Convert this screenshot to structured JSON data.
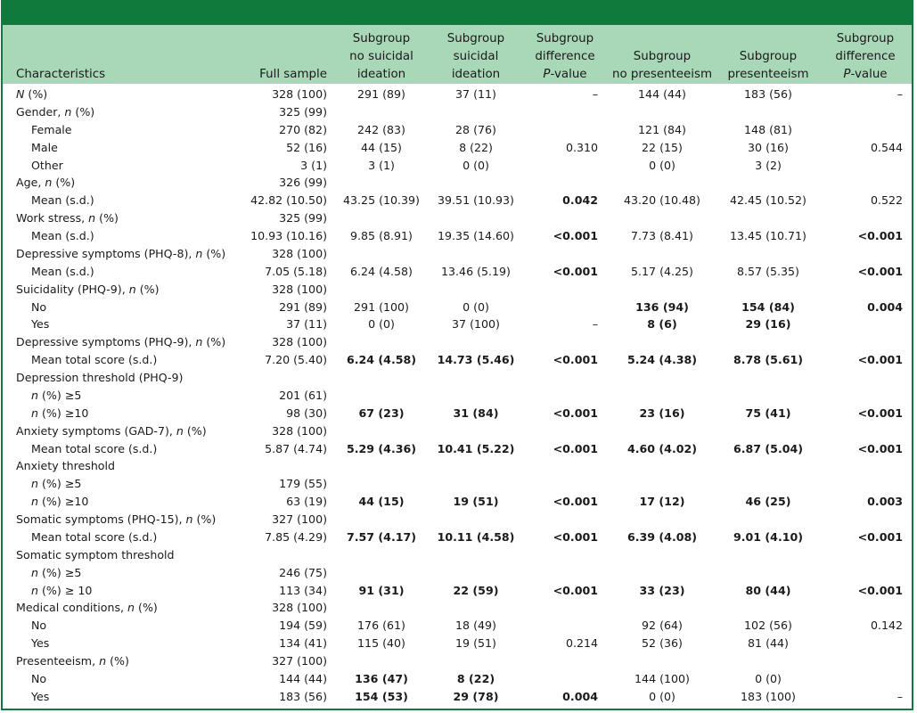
{
  "table": {
    "headers": [
      "Characteristics",
      "Full sample",
      "Subgroup\nno suicidal\nideation",
      "Subgroup\nsuicidal\nideation",
      "Subgroup\ndifference\nP-value",
      "Subgroup\nno presenteeism",
      "Subgroup\npresenteeism",
      "Subgroup\ndifference\nP-value"
    ],
    "rows": [
      {
        "label": "N (%)",
        "indent": false,
        "cells": [
          "328 (100)",
          "291 (89)",
          "37 (11)",
          "–",
          "144 (44)",
          "183 (56)",
          "–"
        ],
        "bold": []
      },
      {
        "label": "Gender, n (%)",
        "indent": false,
        "cells": [
          "325 (99)",
          "",
          "",
          "",
          "",
          "",
          ""
        ],
        "bold": []
      },
      {
        "label": "Female",
        "indent": true,
        "cells": [
          "270 (82)",
          "242 (83)",
          "28 (76)",
          "",
          "121 (84)",
          "148 (81)",
          ""
        ],
        "bold": []
      },
      {
        "label": "Male",
        "indent": true,
        "cells": [
          "52 (16)",
          "44 (15)",
          "8 (22)",
          "0.310",
          "22 (15)",
          "30 (16)",
          "0.544"
        ],
        "bold": []
      },
      {
        "label": "Other",
        "indent": true,
        "cells": [
          "3 (1)",
          "3 (1)",
          "0 (0)",
          "",
          "0 (0)",
          "3 (2)",
          ""
        ],
        "bold": []
      },
      {
        "label": "Age, n (%)",
        "indent": false,
        "cells": [
          "326 (99)",
          "",
          "",
          "",
          "",
          "",
          ""
        ],
        "bold": []
      },
      {
        "label": "Mean (s.d.)",
        "indent": true,
        "cells": [
          "42.82 (10.50)",
          "43.25 (10.39)",
          "39.51 (10.93)",
          "0.042",
          "43.20 (10.48)",
          "42.45 (10.52)",
          "0.522"
        ],
        "bold": [
          3
        ]
      },
      {
        "label": "Work stress, n (%)",
        "indent": false,
        "cells": [
          "325 (99)",
          "",
          "",
          "",
          "",
          "",
          ""
        ],
        "bold": []
      },
      {
        "label": "Mean (s.d.)",
        "indent": true,
        "cells": [
          "10.93 (10.16)",
          "9.85 (8.91)",
          "19.35 (14.60)",
          "<0.001",
          "7.73 (8.41)",
          "13.45 (10.71)",
          "<0.001"
        ],
        "bold": [
          3,
          6
        ]
      },
      {
        "label": "Depressive symptoms (PHQ-8), n (%)",
        "indent": false,
        "cells": [
          "328 (100)",
          "",
          "",
          "",
          "",
          "",
          ""
        ],
        "bold": []
      },
      {
        "label": "Mean (s.d.)",
        "indent": true,
        "cells": [
          "7.05 (5.18)",
          "6.24 (4.58)",
          "13.46 (5.19)",
          "<0.001",
          "5.17 (4.25)",
          "8.57 (5.35)",
          "<0.001"
        ],
        "bold": [
          3,
          6
        ]
      },
      {
        "label": "Suicidality (PHQ-9), n (%)",
        "indent": false,
        "cells": [
          "328 (100)",
          "",
          "",
          "",
          "",
          "",
          ""
        ],
        "bold": []
      },
      {
        "label": "No",
        "indent": true,
        "cells": [
          "291 (89)",
          "291 (100)",
          "0 (0)",
          "",
          "136 (94)",
          "154 (84)",
          "0.004"
        ],
        "bold": [
          4,
          5,
          6
        ]
      },
      {
        "label": "Yes",
        "indent": true,
        "cells": [
          "37 (11)",
          "0 (0)",
          "37 (100)",
          "–",
          "8 (6)",
          "29 (16)",
          ""
        ],
        "bold": [
          4,
          5
        ]
      },
      {
        "label": "Depressive symptoms (PHQ-9), n (%)",
        "indent": false,
        "cells": [
          "328 (100)",
          "",
          "",
          "",
          "",
          "",
          ""
        ],
        "bold": []
      },
      {
        "label": "Mean total score (s.d.)",
        "indent": true,
        "cells": [
          "7.20 (5.40)",
          "6.24 (4.58)",
          "14.73 (5.46)",
          "<0.001",
          "5.24 (4.38)",
          "8.78 (5.61)",
          "<0.001"
        ],
        "bold": [
          1,
          2,
          3,
          4,
          5,
          6
        ]
      },
      {
        "label": "Depression threshold (PHQ-9)",
        "indent": false,
        "cells": [
          "",
          "",
          "",
          "",
          "",
          "",
          ""
        ],
        "bold": []
      },
      {
        "label": "n (%) ≥5",
        "indent": true,
        "cells": [
          "201 (61)",
          "",
          "",
          "",
          "",
          "",
          ""
        ],
        "bold": []
      },
      {
        "label": "n (%) ≥10",
        "indent": true,
        "cells": [
          "98 (30)",
          "67 (23)",
          "31 (84)",
          "<0.001",
          "23 (16)",
          "75 (41)",
          "<0.001"
        ],
        "bold": [
          1,
          2,
          3,
          4,
          5,
          6
        ]
      },
      {
        "label": "Anxiety symptoms (GAD-7), n (%)",
        "indent": false,
        "cells": [
          "328 (100)",
          "",
          "",
          "",
          "",
          "",
          ""
        ],
        "bold": []
      },
      {
        "label": "Mean total score (s.d.)",
        "indent": true,
        "cells": [
          "5.87 (4.74)",
          "5.29 (4.36)",
          "10.41 (5.22)",
          "<0.001",
          "4.60 (4.02)",
          "6.87 (5.04)",
          "<0.001"
        ],
        "bold": [
          1,
          2,
          3,
          4,
          5,
          6
        ]
      },
      {
        "label": "Anxiety threshold",
        "indent": false,
        "cells": [
          "",
          "",
          "",
          "",
          "",
          "",
          ""
        ],
        "bold": []
      },
      {
        "label": "n (%) ≥5",
        "indent": true,
        "cells": [
          "179 (55)",
          "",
          "",
          "",
          "",
          "",
          ""
        ],
        "bold": []
      },
      {
        "label": "n (%) ≥10",
        "indent": true,
        "cells": [
          "63 (19)",
          "44 (15)",
          "19 (51)",
          "<0.001",
          "17 (12)",
          "46 (25)",
          "0.003"
        ],
        "bold": [
          1,
          2,
          3,
          4,
          5,
          6
        ]
      },
      {
        "label": "Somatic symptoms (PHQ-15), n (%)",
        "indent": false,
        "cells": [
          "327 (100)",
          "",
          "",
          "",
          "",
          "",
          ""
        ],
        "bold": []
      },
      {
        "label": "Mean total score (s.d.)",
        "indent": true,
        "cells": [
          "7.85 (4.29)",
          "7.57 (4.17)",
          "10.11 (4.58)",
          "<0.001",
          "6.39 (4.08)",
          "9.01 (4.10)",
          "<0.001"
        ],
        "bold": [
          1,
          2,
          3,
          4,
          5,
          6
        ]
      },
      {
        "label": "Somatic symptom threshold",
        "indent": false,
        "cells": [
          "",
          "",
          "",
          "",
          "",
          "",
          ""
        ],
        "bold": []
      },
      {
        "label": "n (%) ≥5",
        "indent": true,
        "cells": [
          "246 (75)",
          "",
          "",
          "",
          "",
          "",
          ""
        ],
        "bold": []
      },
      {
        "label": "n (%) ≥ 10",
        "indent": true,
        "cells": [
          "113 (34)",
          "91 (31)",
          "22 (59)",
          "<0.001",
          "33 (23)",
          "80 (44)",
          "<0.001"
        ],
        "bold": [
          1,
          2,
          3,
          4,
          5,
          6
        ]
      },
      {
        "label": "Medical conditions, n (%)",
        "indent": false,
        "cells": [
          "328 (100)",
          "",
          "",
          "",
          "",
          "",
          ""
        ],
        "bold": []
      },
      {
        "label": "No",
        "indent": true,
        "cells": [
          "194 (59)",
          "176 (61)",
          "18 (49)",
          "",
          "92 (64)",
          "102 (56)",
          "0.142"
        ],
        "bold": []
      },
      {
        "label": "Yes",
        "indent": true,
        "cells": [
          "134 (41)",
          "115 (40)",
          "19 (51)",
          "0.214",
          "52 (36)",
          "81 (44)",
          ""
        ],
        "bold": []
      },
      {
        "label": "Presenteeism, n (%)",
        "indent": false,
        "cells": [
          "327 (100)",
          "",
          "",
          "",
          "",
          "",
          ""
        ],
        "bold": []
      },
      {
        "label": "No",
        "indent": true,
        "cells": [
          "144 (44)",
          "136 (47)",
          "8 (22)",
          "",
          "144 (100)",
          "0 (0)",
          ""
        ],
        "bold": [
          1,
          2
        ]
      },
      {
        "label": "Yes",
        "indent": true,
        "cells": [
          "183 (56)",
          "154 (53)",
          "29 (78)",
          "0.004",
          "0 (0)",
          "183 (100)",
          "–"
        ],
        "bold": [
          1,
          2,
          3
        ]
      }
    ]
  },
  "colors": {
    "border": "#0f7a3c",
    "header_band": "#a8d8b8",
    "top_bar": "#0f7a3c"
  }
}
